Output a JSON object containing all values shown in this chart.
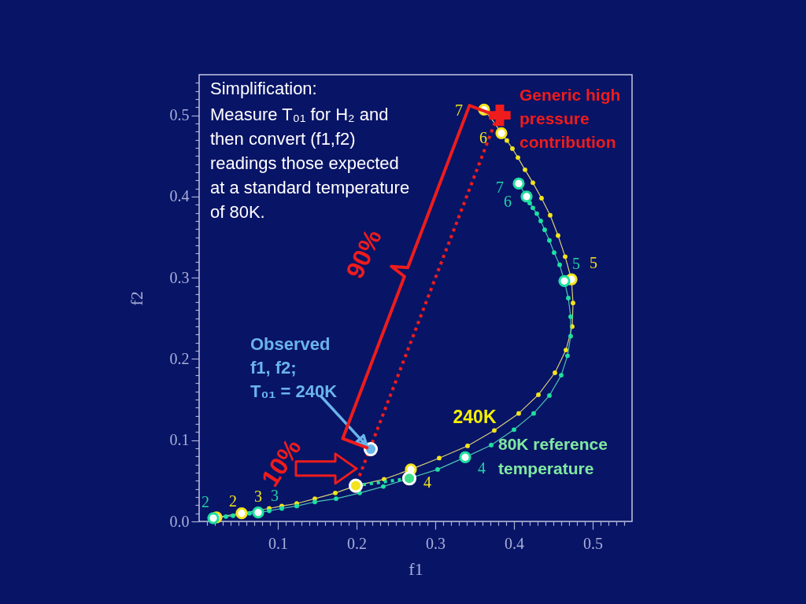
{
  "chart_data": {
    "type": "line",
    "xlabel": "f1",
    "ylabel": "f2",
    "xlim": [
      0,
      0.55
    ],
    "ylim": [
      0,
      0.55
    ],
    "xticks": [
      {
        "value": 0.01,
        "label": null
      },
      {
        "value": 0.02,
        "label": null
      },
      {
        "value": 0.03,
        "label": null
      },
      {
        "value": 0.04,
        "label": null
      },
      {
        "value": 0.05,
        "label": null
      },
      {
        "value": 0.06,
        "label": null
      },
      {
        "value": 0.07,
        "label": null
      },
      {
        "value": 0.08,
        "label": null
      },
      {
        "value": 0.09,
        "label": null
      },
      0.1,
      {
        "value": 0.11,
        "label": null
      },
      {
        "value": 0.12,
        "label": null
      },
      {
        "value": 0.13,
        "label": null
      },
      {
        "value": 0.14,
        "label": null
      },
      {
        "value": 0.15,
        "label": null
      },
      {
        "value": 0.16,
        "label": null
      },
      {
        "value": 0.17,
        "label": null
      },
      {
        "value": 0.18,
        "label": null
      },
      {
        "value": 0.19,
        "label": null
      },
      0.2,
      {
        "value": 0.21,
        "label": null
      },
      {
        "value": 0.22,
        "label": null
      },
      {
        "value": 0.23,
        "label": null
      },
      {
        "value": 0.24,
        "label": null
      },
      {
        "value": 0.25,
        "label": null
      },
      {
        "value": 0.26,
        "label": null
      },
      {
        "value": 0.27,
        "label": null
      },
      {
        "value": 0.28,
        "label": null
      },
      {
        "value": 0.29,
        "label": null
      },
      0.3,
      {
        "value": 0.31,
        "label": null
      },
      {
        "value": 0.32,
        "label": null
      },
      {
        "value": 0.33,
        "label": null
      },
      {
        "value": 0.34,
        "label": null
      },
      {
        "value": 0.35,
        "label": null
      },
      {
        "value": 0.36,
        "label": null
      },
      {
        "value": 0.37,
        "label": null
      },
      {
        "value": 0.38,
        "label": null
      },
      {
        "value": 0.39,
        "label": null
      },
      0.4,
      {
        "value": 0.41,
        "label": null
      },
      {
        "value": 0.42,
        "label": null
      },
      {
        "value": 0.43,
        "label": null
      },
      {
        "value": 0.44,
        "label": null
      },
      {
        "value": 0.45,
        "label": null
      },
      {
        "value": 0.46,
        "label": null
      },
      {
        "value": 0.47,
        "label": null
      },
      {
        "value": 0.48,
        "label": null
      },
      {
        "value": 0.49,
        "label": null
      },
      0.5,
      {
        "value": 0.51,
        "label": null
      },
      {
        "value": 0.52,
        "label": null
      },
      {
        "value": 0.53,
        "label": null
      },
      {
        "value": 0.54,
        "label": null
      }
    ],
    "yticks": [
      {
        "value": 0,
        "label": "0.0"
      },
      {
        "value": 0.01,
        "label": null
      },
      {
        "value": 0.02,
        "label": null
      },
      {
        "value": 0.03,
        "label": null
      },
      {
        "value": 0.04,
        "label": null
      },
      {
        "value": 0.05,
        "label": null
      },
      {
        "value": 0.06,
        "label": null
      },
      {
        "value": 0.07,
        "label": null
      },
      {
        "value": 0.08,
        "label": null
      },
      {
        "value": 0.09,
        "label": null
      },
      0.1,
      {
        "value": 0.11,
        "label": null
      },
      {
        "value": 0.12,
        "label": null
      },
      {
        "value": 0.13,
        "label": null
      },
      {
        "value": 0.14,
        "label": null
      },
      {
        "value": 0.15,
        "label": null
      },
      {
        "value": 0.16,
        "label": null
      },
      {
        "value": 0.17,
        "label": null
      },
      {
        "value": 0.18,
        "label": null
      },
      {
        "value": 0.19,
        "label": null
      },
      0.2,
      {
        "value": 0.21,
        "label": null
      },
      {
        "value": 0.22,
        "label": null
      },
      {
        "value": 0.23,
        "label": null
      },
      {
        "value": 0.24,
        "label": null
      },
      {
        "value": 0.25,
        "label": null
      },
      {
        "value": 0.26,
        "label": null
      },
      {
        "value": 0.27,
        "label": null
      },
      {
        "value": 0.28,
        "label": null
      },
      {
        "value": 0.29,
        "label": null
      },
      0.3,
      {
        "value": 0.31,
        "label": null
      },
      {
        "value": 0.32,
        "label": null
      },
      {
        "value": 0.33,
        "label": null
      },
      {
        "value": 0.34,
        "label": null
      },
      {
        "value": 0.35,
        "label": null
      },
      {
        "value": 0.36,
        "label": null
      },
      {
        "value": 0.37,
        "label": null
      },
      {
        "value": 0.38,
        "label": null
      },
      {
        "value": 0.39,
        "label": null
      },
      0.4,
      {
        "value": 0.41,
        "label": null
      },
      {
        "value": 0.42,
        "label": null
      },
      {
        "value": 0.43,
        "label": null
      },
      {
        "value": 0.44,
        "label": null
      },
      {
        "value": 0.45,
        "label": null
      },
      {
        "value": 0.46,
        "label": null
      },
      {
        "value": 0.47,
        "label": null
      },
      {
        "value": 0.48,
        "label": null
      },
      {
        "value": 0.49,
        "label": null
      },
      0.5,
      {
        "value": 0.51,
        "label": null
      },
      {
        "value": 0.52,
        "label": null
      },
      {
        "value": 0.53,
        "label": null
      },
      {
        "value": 0.54,
        "label": null
      }
    ],
    "grid": false,
    "annotations": [
      "Simplification:",
      "Measure  T₀₁ for H₂ and\nthen convert (f1,f2)\nreadings those expected\nat a standard temperature\nof 80K.",
      {
        "text": "Generic high\npressure\ncontribution",
        "x": 0.382,
        "y": 0.5
      },
      {
        "text": "Observed\nf1, f2;\nT₀₁ = 240K",
        "x": 0.218,
        "y": 0.089
      },
      {
        "text": "90%",
        "x": 0.299,
        "y": 0.294
      },
      {
        "text": "10%",
        "x": 0.2,
        "y": 0.065
      },
      {
        "text": "240K",
        "x": 0.341,
        "y": 0.093
      },
      {
        "text": "80K reference\ntemperature",
        "x": 0.371,
        "y": 0.094
      },
      {
        "text": "2",
        "x": 0.022,
        "y": 0.005
      },
      {
        "text": "3",
        "x": 0.054,
        "y": 0.01
      },
      {
        "text": "4",
        "x": 0.269,
        "y": 0.064
      },
      {
        "text": "5",
        "x": 0.473,
        "y": 0.298
      },
      {
        "text": "6",
        "x": 0.384,
        "y": 0.478
      },
      {
        "text": "7",
        "x": 0.362,
        "y": 0.507
      },
      {
        "text": "2",
        "x": 0.018,
        "y": 0.004
      },
      {
        "text": "3",
        "x": 0.075,
        "y": 0.011
      },
      {
        "text": "4",
        "x": 0.338,
        "y": 0.079
      },
      {
        "text": "5",
        "x": 0.464,
        "y": 0.296
      },
      {
        "text": "6",
        "x": 0.416,
        "y": 0.4
      },
      {
        "text": "7",
        "x": 0.406,
        "y": 0.416
      }
    ],
    "series": [
      {
        "color": "#d6cf7a",
        "marker": "none",
        "x": [
          0.022,
          0.054,
          0.089,
          0.105,
          0.124,
          0.147,
          0.173,
          0.199,
          0.235,
          0.269,
          0.305,
          0.341,
          0.375,
          0.406,
          0.431,
          0.452,
          0.466,
          0.474,
          0.475,
          0.473,
          0.465,
          0.456,
          0.446,
          0.435,
          0.424,
          0.414,
          0.405,
          0.398,
          0.391,
          0.384,
          0.375,
          0.362
        ],
        "values": [
          0.005,
          0.01,
          0.016,
          0.019,
          0.022,
          0.028,
          0.035,
          0.044,
          0.052,
          0.064,
          0.078,
          0.093,
          0.112,
          0.133,
          0.156,
          0.183,
          0.211,
          0.24,
          0.269,
          0.298,
          0.326,
          0.352,
          0.377,
          0.398,
          0.417,
          0.433,
          0.448,
          0.459,
          0.469,
          0.478,
          0.491,
          0.507
        ]
      },
      {
        "type": "scatter",
        "color": "#f2e41c",
        "marker": "circle",
        "x": [
          0.089,
          0.105,
          0.124,
          0.147,
          0.173,
          0.235,
          0.305,
          0.341,
          0.375,
          0.406,
          0.431,
          0.452,
          0.466,
          0.474,
          0.475,
          0.465,
          0.456,
          0.446,
          0.435,
          0.424,
          0.414,
          0.405,
          0.398,
          0.391
        ],
        "values": [
          0.016,
          0.019,
          0.022,
          0.028,
          0.035,
          0.052,
          0.078,
          0.093,
          0.112,
          0.133,
          0.156,
          0.183,
          0.211,
          0.24,
          0.269,
          0.326,
          0.352,
          0.377,
          0.398,
          0.417,
          0.433,
          0.448,
          0.459,
          0.469
        ]
      },
      {
        "color": "#4cc4b4",
        "marker": "none",
        "x": [
          0.018,
          0.034,
          0.043,
          0.064,
          0.075,
          0.089,
          0.105,
          0.124,
          0.147,
          0.174,
          0.204,
          0.234,
          0.267,
          0.303,
          0.338,
          0.371,
          0.4,
          0.425,
          0.445,
          0.46,
          0.468,
          0.472,
          0.472,
          0.469,
          0.464,
          0.458,
          0.451,
          0.445,
          0.439,
          0.434,
          0.429,
          0.424,
          0.42,
          0.416,
          0.406
        ],
        "values": [
          0.004,
          0.006,
          0.007,
          0.01,
          0.011,
          0.013,
          0.016,
          0.019,
          0.024,
          0.028,
          0.035,
          0.043,
          0.053,
          0.064,
          0.079,
          0.094,
          0.113,
          0.133,
          0.155,
          0.18,
          0.204,
          0.228,
          0.252,
          0.275,
          0.296,
          0.316,
          0.331,
          0.346,
          0.359,
          0.37,
          0.379,
          0.386,
          0.392,
          0.4,
          0.416
        ]
      },
      {
        "type": "scatter",
        "color": "#1ee0a0",
        "marker": "circle",
        "x": [
          0.034,
          0.043,
          0.064,
          0.089,
          0.105,
          0.124,
          0.147,
          0.174,
          0.204,
          0.234,
          0.303,
          0.371,
          0.4,
          0.425,
          0.445,
          0.46,
          0.468,
          0.472,
          0.472,
          0.469,
          0.458,
          0.451,
          0.445,
          0.439,
          0.434,
          0.429,
          0.424,
          0.42
        ],
        "values": [
          0.006,
          0.007,
          0.01,
          0.013,
          0.016,
          0.019,
          0.024,
          0.028,
          0.035,
          0.043,
          0.064,
          0.094,
          0.113,
          0.133,
          0.155,
          0.18,
          0.204,
          0.228,
          0.252,
          0.275,
          0.316,
          0.331,
          0.346,
          0.359,
          0.37,
          0.379,
          0.386,
          0.392
        ]
      },
      {
        "type": "scatter",
        "color": "#f2e41c",
        "marker": "circle",
        "x": [
          0.022,
          0.054,
          0.269,
          0.473,
          0.384,
          0.362
        ],
        "values": [
          0.005,
          0.01,
          0.064,
          0.298,
          0.478,
          0.507
        ]
      },
      {
        "type": "scatter",
        "color": "#1ee0a0",
        "marker": "circle",
        "x": [
          0.018,
          0.075,
          0.338,
          0.464,
          0.416,
          0.406
        ],
        "values": [
          0.004,
          0.011,
          0.079,
          0.296,
          0.4,
          0.416
        ]
      },
      {
        "color": "#ee1c1c",
        "line_style": "dotted",
        "marker": "none",
        "x": [
          0.379,
          0.199
        ],
        "values": [
          0.499,
          0.044
        ]
      },
      {
        "color": "#1ee0a0",
        "line_style": "dotted",
        "marker": "none",
        "x": [
          0.199,
          0.267
        ],
        "values": [
          0.044,
          0.053
        ]
      },
      {
        "type": "scatter",
        "color": "#f2e41c",
        "marker": "circle",
        "x": [
          0.199
        ],
        "values": [
          0.044
        ]
      },
      {
        "type": "scatter",
        "color": "#3ee08a",
        "marker": "circle",
        "x": [
          0.267
        ],
        "values": [
          0.053
        ]
      },
      {
        "type": "scatter",
        "color": "#6ab4ec",
        "marker": "circle",
        "x": [
          0.218
        ],
        "values": [
          0.089
        ]
      },
      {
        "type": "scatter",
        "color": "#ee1c1c",
        "marker": "cross",
        "x": [
          0.382
        ],
        "values": [
          0.5
        ]
      }
    ]
  }
}
